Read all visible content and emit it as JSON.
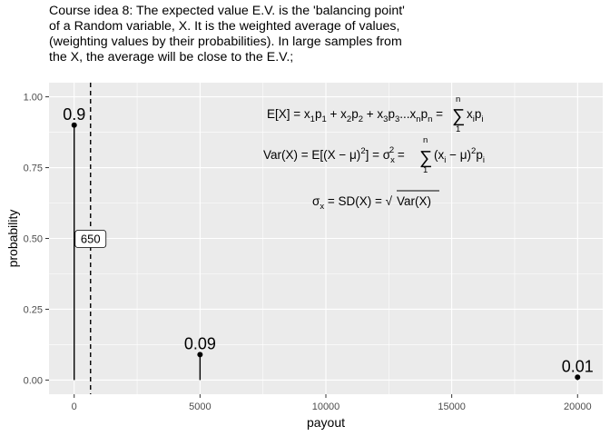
{
  "title": "Course idea 8: The expected value E.V. is the 'balancing point' of a Random variable, X. It is the weighted average of values, (weighting values by their probabilities). In large samples from the X, the average will be close to the E.V.;",
  "chart_data": {
    "type": "lollipop",
    "xlabel": "payout",
    "ylabel": "probability",
    "xlim": [
      -1000,
      21000
    ],
    "ylim": [
      -0.05,
      1.05
    ],
    "xticks": [
      0,
      5000,
      10000,
      15000,
      20000
    ],
    "yticks": [
      0.0,
      0.25,
      0.5,
      0.75,
      1.0
    ],
    "xtick_labels": [
      "0",
      "5000",
      "10000",
      "15000",
      "20000"
    ],
    "ytick_labels": [
      "0.00",
      "0.25",
      "0.50",
      "0.75",
      "1.00"
    ],
    "points": [
      {
        "x": 0,
        "y": 0.9,
        "label": "0.9"
      },
      {
        "x": 5000,
        "y": 0.09,
        "label": "0.09"
      },
      {
        "x": 20000,
        "y": 0.01,
        "label": "0.01"
      }
    ],
    "expected_value": {
      "x": 650,
      "label": "650",
      "label_y": 0.5
    },
    "grid": true,
    "colors": {
      "panel": "#ebebeb",
      "grid": "#ffffff",
      "ink": "#000000"
    }
  }
}
